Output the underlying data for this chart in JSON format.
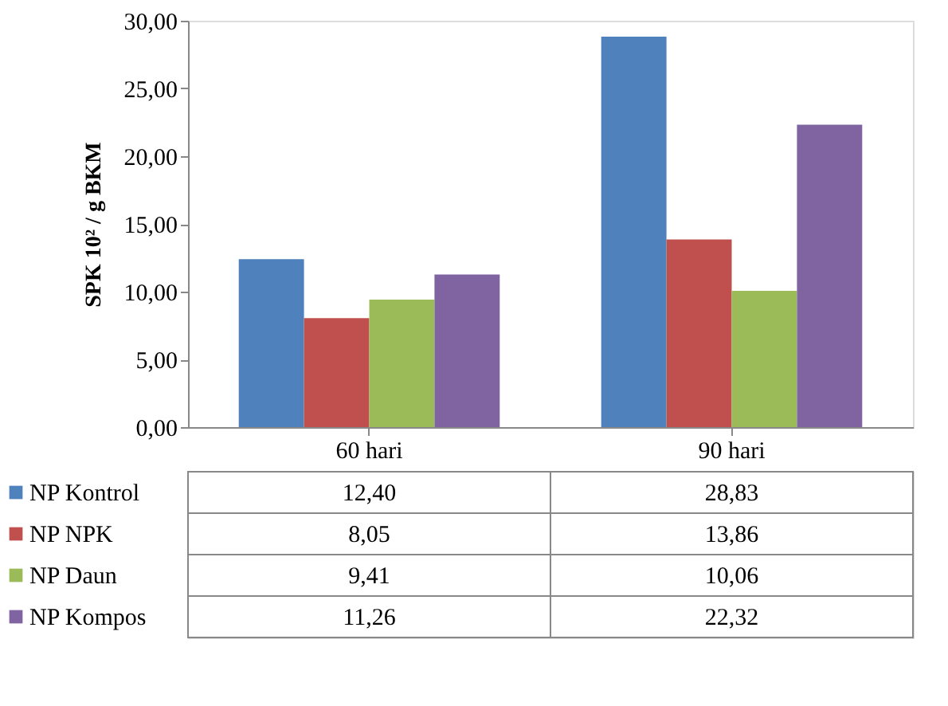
{
  "chart_data": {
    "type": "bar",
    "ylabel": "SPK 10² / g BKM",
    "categories": [
      "60 hari",
      "90 hari"
    ],
    "series": [
      {
        "name": "NP Kontrol",
        "color": "#4f81bd",
        "values": [
          12.4,
          28.83
        ],
        "value_labels": [
          "12,40",
          "28,83"
        ]
      },
      {
        "name": "NP NPK",
        "color": "#c0504d",
        "values": [
          8.05,
          13.86
        ],
        "value_labels": [
          "8,05",
          "13,86"
        ]
      },
      {
        "name": "NP Daun",
        "color": "#9bbb59",
        "values": [
          9.41,
          10.06
        ],
        "value_labels": [
          "9,41",
          "10,06"
        ]
      },
      {
        "name": "NP Kompos",
        "color": "#8064a2",
        "values": [
          11.26,
          22.32
        ],
        "value_labels": [
          "11,26",
          "22,32"
        ]
      }
    ],
    "ylim": [
      0,
      30
    ],
    "yticks": [
      {
        "value": 0,
        "label": "0,00"
      },
      {
        "value": 5,
        "label": "5,00"
      },
      {
        "value": 10,
        "label": "10,00"
      },
      {
        "value": 15,
        "label": "15,00"
      },
      {
        "value": 20,
        "label": "20,00"
      },
      {
        "value": 25,
        "label": "25,00"
      },
      {
        "value": 30,
        "label": "30,00"
      }
    ],
    "legend": "bottom",
    "grid": false
  }
}
